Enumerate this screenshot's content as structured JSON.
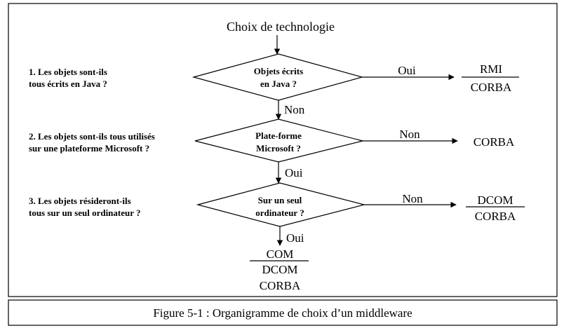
{
  "diagram": {
    "start_label": "Choix de technologie",
    "questions": [
      {
        "line1": "1. Les objets sont-ils",
        "line2": "tous écrits en Java ?"
      },
      {
        "line1": "2. Les objets sont-ils tous utilisés",
        "line2": "sur une plateforme Microsoft ?"
      },
      {
        "line1": "3. Les objets résideront-ils",
        "line2": "tous sur un seul ordinateur ?"
      }
    ],
    "decisions": [
      {
        "line1": "Objets écrits",
        "line2": "en Java ?"
      },
      {
        "line1": "Plate-forme",
        "line2": "Microsoft ?"
      },
      {
        "line1": "Sur un seul",
        "line2": "ordinateur ?"
      }
    ],
    "branches": [
      {
        "side_label": "Oui",
        "down_label": "Non",
        "result_top": "RMI",
        "result_bottom": "CORBA"
      },
      {
        "side_label": "Non",
        "down_label": "Oui",
        "result": "CORBA"
      },
      {
        "side_label": "Non",
        "down_label": "Oui",
        "result_top": "DCOM",
        "result_bottom": "CORBA"
      }
    ],
    "final": {
      "line1": "COM",
      "line2": "DCOM",
      "line3": "CORBA"
    }
  },
  "caption": "Figure 5-1 : Organigramme de choix d’un middleware"
}
